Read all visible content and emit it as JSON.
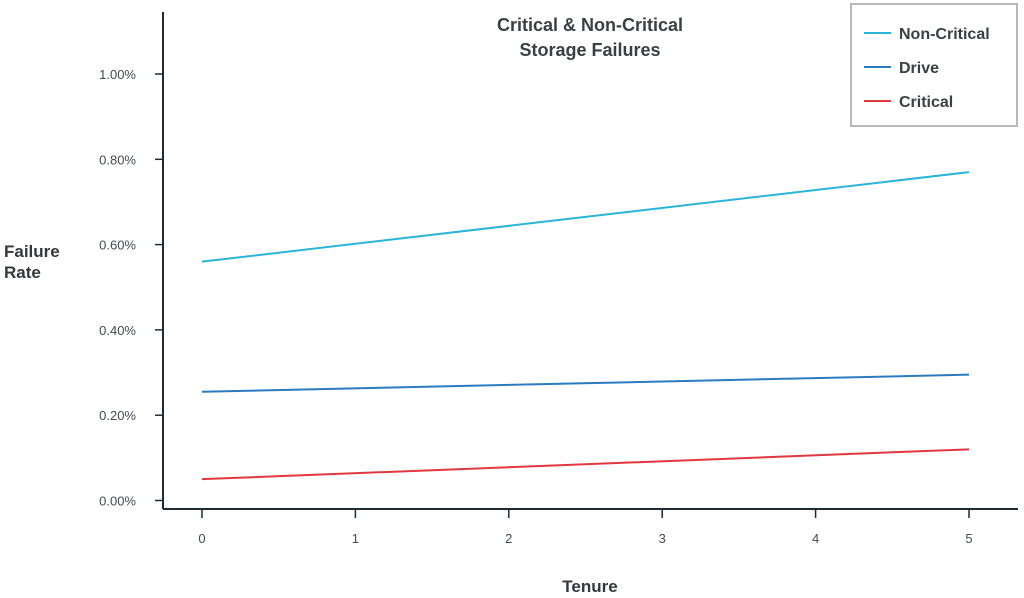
{
  "chart_data": {
    "type": "line",
    "title": [
      "Critical & Non-Critical",
      "Storage Failures"
    ],
    "xlabel": "Tenure",
    "ylabel": [
      "Failure",
      "Rate"
    ],
    "x_ticks": [
      "0",
      "1",
      "2",
      "3",
      "4",
      "5"
    ],
    "y_ticks": [
      "0.00%",
      "0.20%",
      "0.40%",
      "0.60%",
      "0.80%",
      "1.00%"
    ],
    "xlim": [
      -0.25,
      5.25
    ],
    "ylim": [
      0,
      1.1
    ],
    "legend_position": "top-right",
    "grid": false,
    "series": [
      {
        "name": "Non-Critical",
        "color": "#29b5d8",
        "x": [
          0,
          5
        ],
        "y": [
          0.56,
          0.77
        ]
      },
      {
        "name": "Drive",
        "color": "#2b7bbf",
        "x": [
          0,
          5
        ],
        "y": [
          0.255,
          0.295
        ]
      },
      {
        "name": "Critical",
        "color": "#e0383e",
        "x": [
          0,
          5
        ],
        "y": [
          0.05,
          0.12
        ]
      }
    ]
  }
}
